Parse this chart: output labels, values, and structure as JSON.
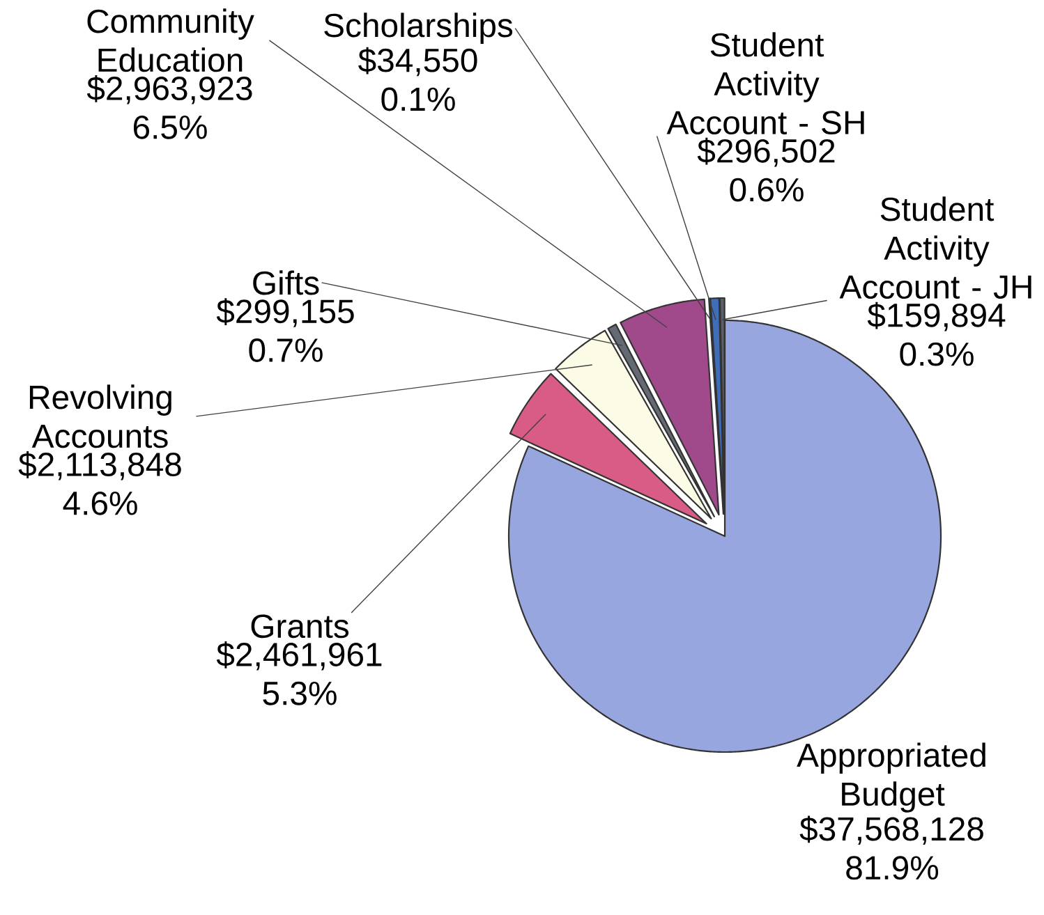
{
  "chart_data": {
    "type": "pie",
    "categories": [
      "Appropriated Budget",
      "Grants",
      "Revolving Accounts",
      "Gifts",
      "Community Education",
      "Scholarships",
      "Student Activity Account - SH",
      "Student Activity Account - JH"
    ],
    "values": [
      37568128,
      2461961,
      2113848,
      299155,
      2963923,
      34550,
      296502,
      159894
    ],
    "colors": [
      "#98a6e0",
      "#d85c85",
      "#fbfbe6",
      "#646a72",
      "#a04a8c",
      "#5a6068",
      "#3f6db8",
      "#5a6068"
    ],
    "value_labels": [
      "$37,568,128",
      "$2,461,961",
      "$2,113,848",
      "$299,155",
      "$2,963,923",
      "$34,550",
      "$296,502",
      "$159,894"
    ],
    "annotations": [
      "81.9%",
      "5.3%",
      "4.6%",
      "0.7%",
      "6.5%",
      "0.1%",
      "0.6%",
      "0.3%"
    ]
  }
}
